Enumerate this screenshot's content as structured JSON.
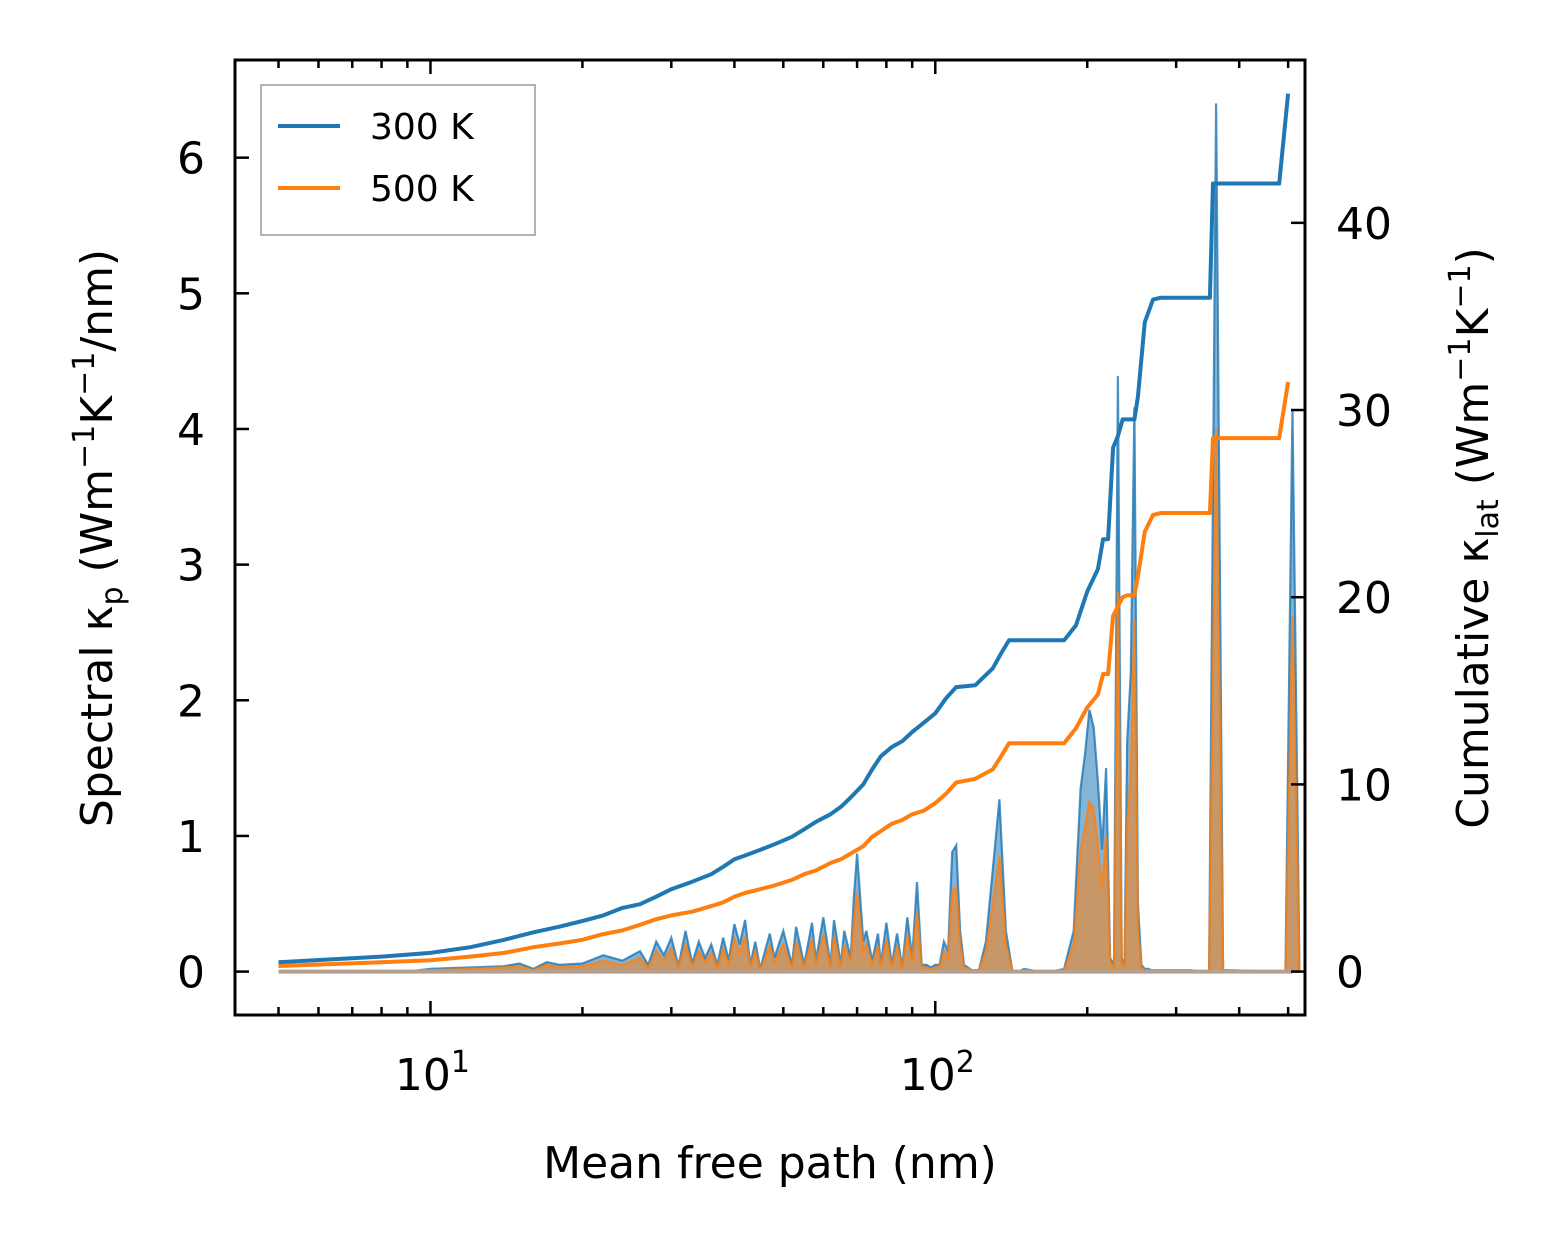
{
  "chart_data": {
    "type": "line",
    "xscale": "log",
    "xlabel": "Mean free path (nm)",
    "ylabel_left": "Spectral κp (Wm−1K−1/nm)",
    "ylabel_left_parts": {
      "prefix": "Spectral κ",
      "sub": "p",
      "unit_open": " (Wm",
      "sup1": "−1",
      "k": "K",
      "sup2": "−1",
      "unit_close": "/nm)"
    },
    "ylabel_right": "Cumulative κlat (Wm−1K−1)",
    "ylabel_right_parts": {
      "prefix": "Cumulative κ",
      "sub": "lat",
      "unit_open": " (Wm",
      "sup1": "−1",
      "k": "K",
      "sup2": "−1",
      "unit_close": ")"
    },
    "xlim": [
      4.1,
      540
    ],
    "ylim_left": [
      -0.32,
      6.72
    ],
    "ylim_right": [
      -2.32,
      48.7
    ],
    "x_ticks": [
      {
        "value": 10,
        "base": "10",
        "exp": "1"
      },
      {
        "value": 100,
        "base": "10",
        "exp": "2"
      }
    ],
    "y_ticks_left": [
      "0",
      "1",
      "2",
      "3",
      "4",
      "5",
      "6"
    ],
    "y_ticks_right": [
      "0",
      "10",
      "20",
      "30",
      "40"
    ],
    "legend": {
      "position": "top-left",
      "entries": [
        {
          "name": "300 K",
          "color": "#1f77b4"
        },
        {
          "name": "500 K",
          "color": "#ff7f0e"
        }
      ]
    },
    "series": [
      {
        "name": "300 K",
        "color": "#1f77b4",
        "axis": "right",
        "kind": "cumulative",
        "x": [
          5,
          8,
          10,
          12,
          14,
          16,
          18,
          20,
          22,
          24,
          26,
          28,
          30,
          33,
          36,
          38,
          40,
          42,
          45,
          48,
          52,
          55,
          58,
          62,
          65,
          68,
          72,
          75,
          78,
          82,
          86,
          90,
          95,
          100,
          105,
          110,
          120,
          130,
          135,
          140,
          150,
          180,
          190,
          200,
          210,
          215,
          220,
          225,
          230,
          235,
          240,
          248,
          252,
          260,
          270,
          280,
          340,
          350,
          355,
          360,
          380,
          480,
          500
        ],
        "y": [
          0.5,
          0.8,
          1.0,
          1.3,
          1.7,
          2.1,
          2.4,
          2.7,
          3.0,
          3.4,
          3.6,
          4.0,
          4.4,
          4.8,
          5.2,
          5.6,
          6.0,
          6.2,
          6.5,
          6.8,
          7.2,
          7.6,
          8.0,
          8.4,
          8.8,
          9.3,
          10.0,
          10.8,
          11.5,
          12.0,
          12.3,
          12.8,
          13.3,
          13.8,
          14.6,
          15.2,
          15.3,
          16.2,
          17.0,
          17.7,
          17.7,
          17.7,
          18.5,
          20.3,
          21.5,
          23.1,
          23.1,
          28.0,
          28.6,
          29.5,
          29.5,
          29.5,
          30.7,
          34.7,
          35.9,
          36.0,
          36.0,
          36.0,
          42.1,
          42.1,
          42.1,
          42.1,
          46.9
        ]
      },
      {
        "name": "500 K",
        "color": "#ff7f0e",
        "axis": "right",
        "kind": "cumulative",
        "x": [
          5,
          8,
          10,
          12,
          14,
          16,
          18,
          20,
          22,
          24,
          26,
          28,
          30,
          33,
          36,
          38,
          40,
          42,
          45,
          48,
          52,
          55,
          58,
          62,
          65,
          68,
          72,
          75,
          78,
          82,
          86,
          90,
          95,
          100,
          105,
          110,
          120,
          130,
          135,
          140,
          150,
          180,
          190,
          200,
          210,
          215,
          220,
          225,
          230,
          235,
          240,
          248,
          252,
          260,
          270,
          280,
          340,
          350,
          355,
          360,
          380,
          480,
          500
        ],
        "y": [
          0.3,
          0.5,
          0.6,
          0.8,
          1.0,
          1.3,
          1.5,
          1.7,
          2.0,
          2.2,
          2.5,
          2.8,
          3.0,
          3.2,
          3.5,
          3.7,
          4.0,
          4.2,
          4.4,
          4.6,
          4.9,
          5.2,
          5.4,
          5.8,
          6.0,
          6.3,
          6.7,
          7.2,
          7.5,
          7.9,
          8.1,
          8.4,
          8.6,
          9.0,
          9.5,
          10.1,
          10.3,
          10.8,
          11.5,
          12.2,
          12.2,
          12.2,
          13.0,
          14.1,
          14.8,
          15.9,
          15.9,
          19.0,
          19.5,
          20.0,
          20.1,
          20.1,
          21.1,
          23.5,
          24.4,
          24.5,
          24.5,
          24.5,
          28.5,
          28.5,
          28.5,
          28.5,
          31.5
        ]
      },
      {
        "name": "300 K spectral",
        "color": "#1f77b4",
        "axis": "left",
        "kind": "spectral",
        "x": [
          5,
          9,
          10,
          14,
          15,
          16,
          17,
          18,
          20,
          22,
          24,
          26,
          27,
          28,
          29,
          30,
          31,
          32,
          33,
          34,
          35,
          36,
          37,
          38,
          39,
          40,
          41,
          42,
          43,
          44,
          45,
          47,
          48,
          50,
          52,
          53,
          55,
          57,
          58,
          60,
          62,
          63,
          65,
          66,
          68,
          69,
          70,
          72,
          73,
          75,
          77,
          78,
          80,
          82,
          84,
          86,
          88,
          90,
          92,
          94,
          96,
          98,
          100,
          102,
          104,
          106,
          108,
          110,
          112,
          114,
          118,
          122,
          126,
          130,
          134,
          138,
          142,
          146,
          150,
          160,
          170,
          180,
          188,
          194,
          198,
          202,
          206,
          210,
          214,
          218,
          222,
          226,
          230,
          234,
          237,
          240,
          244,
          248,
          252,
          256,
          260,
          264,
          268,
          272,
          276,
          280,
          300,
          320,
          340,
          345,
          350,
          354,
          358,
          362,
          366,
          370,
          380,
          480,
          490,
          500
        ],
        "y": [
          0,
          0,
          0.02,
          0.04,
          0.06,
          0.02,
          0.07,
          0.05,
          0.06,
          0.12,
          0.08,
          0.15,
          0.05,
          0.22,
          0.12,
          0.25,
          0.04,
          0.3,
          0.06,
          0.22,
          0.1,
          0.2,
          0.05,
          0.25,
          0.08,
          0.35,
          0.2,
          0.38,
          0.05,
          0.22,
          0.02,
          0.28,
          0.1,
          0.3,
          0.05,
          0.33,
          0.05,
          0.36,
          0.08,
          0.4,
          0.05,
          0.38,
          0.05,
          0.3,
          0.1,
          0.55,
          0.87,
          0.22,
          0.3,
          0.08,
          0.28,
          0.05,
          0.36,
          0.05,
          0.28,
          0.03,
          0.4,
          0.1,
          0.66,
          0.05,
          0.05,
          0.03,
          0.05,
          0.05,
          0.22,
          0.15,
          0.88,
          0.93,
          0.3,
          0.05,
          0.01,
          0.01,
          0.22,
          0.75,
          1.27,
          0.3,
          0.01,
          0,
          0.02,
          0,
          0,
          0.02,
          0.3,
          1.35,
          1.6,
          1.93,
          1.8,
          1.4,
          0.9,
          1.5,
          0.1,
          0.05,
          4.39,
          0.1,
          0.05,
          1.7,
          2.2,
          4.16,
          0.5,
          0.05,
          0.02,
          0.02,
          0.01,
          0.01,
          0.01,
          0.01,
          0.01,
          0.01,
          0,
          0,
          0,
          0,
          0,
          0,
          0,
          0.01,
          0.01,
          0,
          0,
          0
        ]
      },
      {
        "name": "500 K spectral",
        "color": "#ff7f0e",
        "axis": "left",
        "kind": "spectral",
        "x": [
          5,
          9,
          10,
          14,
          15,
          16,
          17,
          18,
          20,
          22,
          24,
          26,
          27,
          28,
          29,
          30,
          31,
          32,
          33,
          34,
          35,
          36,
          37,
          38,
          39,
          40,
          41,
          42,
          43,
          44,
          45,
          47,
          48,
          50,
          52,
          53,
          55,
          57,
          58,
          60,
          62,
          63,
          65,
          66,
          68,
          69,
          70,
          72,
          73,
          75,
          77,
          78,
          80,
          82,
          84,
          86,
          88,
          90,
          92,
          94,
          96,
          98,
          100,
          102,
          104,
          106,
          108,
          110,
          112,
          114,
          118,
          122,
          126,
          130,
          134,
          138,
          142,
          146,
          150,
          160,
          170,
          180,
          188,
          194,
          198,
          202,
          206,
          210,
          214,
          218,
          222,
          226,
          230,
          234,
          237,
          240,
          244,
          248,
          252,
          256,
          260,
          264,
          268,
          272,
          276,
          280,
          300,
          320,
          340,
          345,
          350,
          354,
          358,
          362,
          366,
          370,
          380,
          480,
          490,
          500
        ],
        "y": [
          0,
          0,
          0.01,
          0.03,
          0.04,
          0.01,
          0.05,
          0.03,
          0.04,
          0.08,
          0.05,
          0.1,
          0.03,
          0.15,
          0.08,
          0.17,
          0.03,
          0.2,
          0.04,
          0.15,
          0.07,
          0.14,
          0.03,
          0.17,
          0.05,
          0.24,
          0.14,
          0.26,
          0.03,
          0.15,
          0.01,
          0.19,
          0.07,
          0.2,
          0.03,
          0.22,
          0.03,
          0.24,
          0.05,
          0.27,
          0.03,
          0.26,
          0.03,
          0.2,
          0.07,
          0.37,
          0.58,
          0.15,
          0.2,
          0.05,
          0.19,
          0.03,
          0.24,
          0.03,
          0.19,
          0.02,
          0.27,
          0.07,
          0.44,
          0.03,
          0.03,
          0.02,
          0.03,
          0.03,
          0.15,
          0.1,
          0.59,
          0.62,
          0.2,
          0.03,
          0.01,
          0.01,
          0.15,
          0.5,
          0.85,
          0.2,
          0.01,
          0,
          0.01,
          0,
          0,
          0.01,
          0.2,
          0.9,
          1.07,
          1.25,
          1.2,
          0.93,
          0.6,
          1.0,
          0.07,
          0.03,
          2.8,
          0.07,
          0.03,
          1.1,
          1.45,
          2.6,
          0.3,
          0.03,
          0.01,
          0.01,
          0.01,
          0.01,
          0.01,
          0.01,
          0.01,
          0.01,
          0,
          0,
          0,
          0,
          0,
          0,
          0,
          0.01,
          0.01,
          0,
          0,
          0
        ]
      }
    ],
    "spikes": [
      {
        "x": 360,
        "y_300K": 6.4,
        "y_500K": 4.0,
        "axis": "left"
      },
      {
        "x": 510,
        "y_300K": 4.14,
        "y_500K": 2.62,
        "axis": "left"
      }
    ]
  }
}
